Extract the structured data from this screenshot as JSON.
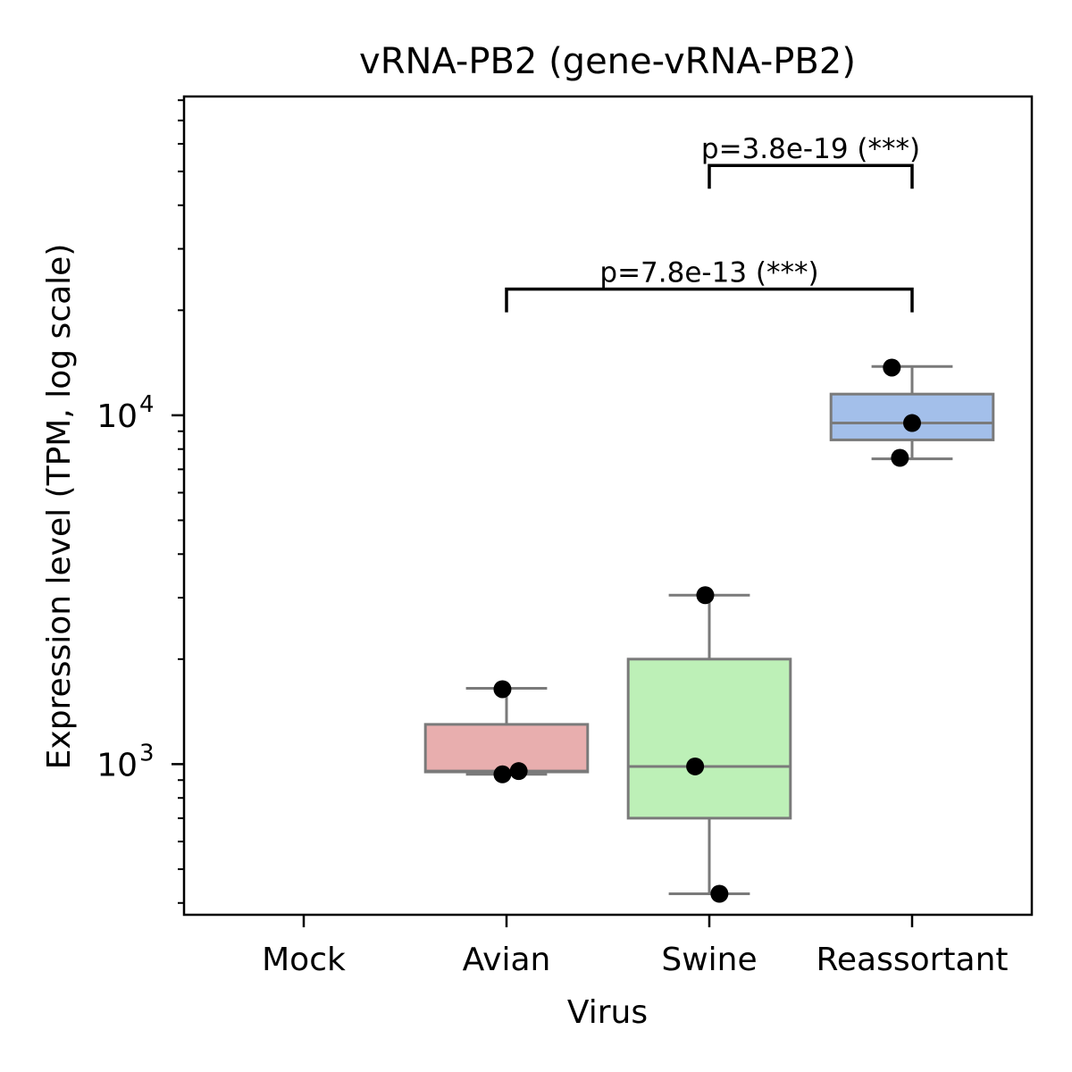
{
  "chart_data": {
    "type": "box",
    "title": "vRNA-PB2 (gene-vRNA-PB2)",
    "xlabel": "Virus",
    "ylabel": "Expression level (TPM, log scale)",
    "yscale": "log",
    "ylim": [
      370,
      82000
    ],
    "categories": [
      "Mock",
      "Avian",
      "Swine",
      "Reassortant"
    ],
    "y_ticks": [
      {
        "base": "10",
        "exp": "3",
        "value": 1000
      },
      {
        "base": "10",
        "exp": "4",
        "value": 10000
      }
    ],
    "boxes": [
      {
        "category": "Avian",
        "q1": 950,
        "median": 955,
        "q3": 1300,
        "whisker_low": 935,
        "whisker_high": 1650,
        "color": "#e8aeae"
      },
      {
        "category": "Swine",
        "q1": 700,
        "median": 985,
        "q3": 2000,
        "whisker_low": 425,
        "whisker_high": 3050,
        "color": "#bdf0b7"
      },
      {
        "category": "Reassortant",
        "q1": 8500,
        "median": 9500,
        "q3": 11500,
        "whisker_low": 7500,
        "whisker_high": 13800,
        "color": "#a3bfea"
      }
    ],
    "points": [
      {
        "category": "Avian",
        "values": [
          1640,
          935,
          955
        ],
        "jitter": [
          -0.02,
          -0.02,
          0.06
        ]
      },
      {
        "category": "Swine",
        "values": [
          3050,
          985,
          425
        ],
        "jitter": [
          -0.02,
          -0.07,
          0.05
        ]
      },
      {
        "category": "Reassortant",
        "values": [
          13700,
          9500,
          7550
        ],
        "jitter": [
          -0.1,
          0.0,
          -0.06
        ]
      }
    ],
    "significance": [
      {
        "from": "Avian",
        "to": "Reassortant",
        "y": 23000,
        "label": "p=7.8e-13 (***)"
      },
      {
        "from": "Swine",
        "to": "Reassortant",
        "y": 52000,
        "label": "p=3.8e-19 (***)"
      }
    ],
    "grid": false
  }
}
